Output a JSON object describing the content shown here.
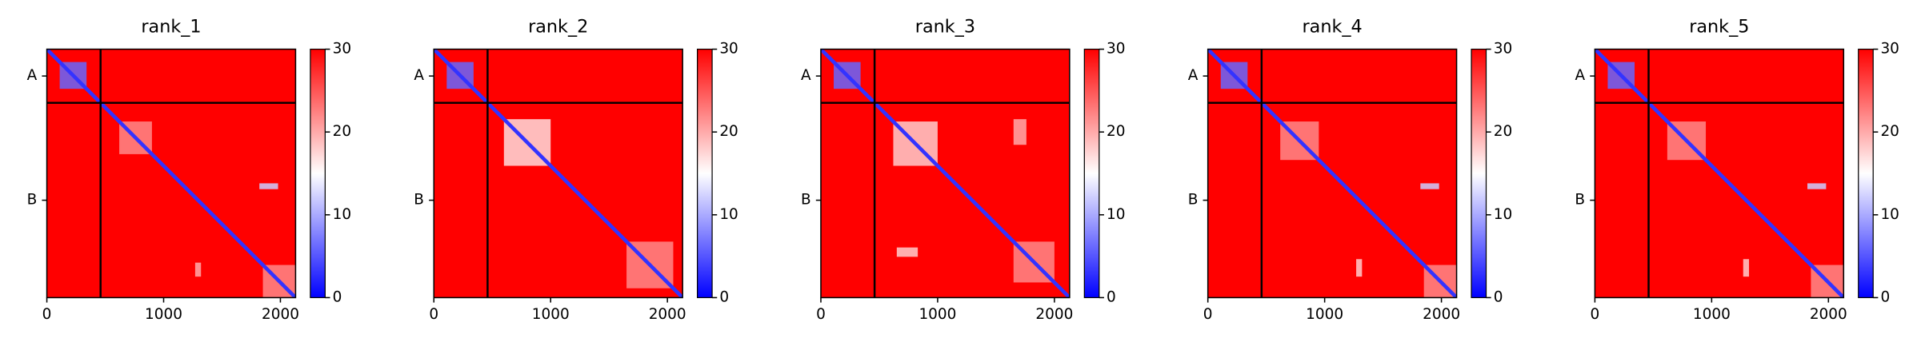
{
  "chart_data": [
    {
      "type": "heatmap",
      "title": "rank_1",
      "xlim": [
        0,
        2130
      ],
      "ylim": [
        2130,
        0
      ],
      "xticks": [
        0,
        1000,
        2000
      ],
      "yticks": [
        {
          "value": 230,
          "label": "A"
        },
        {
          "value": 1295,
          "label": "B"
        }
      ],
      "chain_boundary": 460,
      "clim": [
        0,
        30
      ],
      "cticks": [
        0,
        10,
        20,
        30
      ],
      "colors": [
        "#0000ff",
        "#ffffff",
        "#ff0000"
      ],
      "diagonal_value": 3,
      "regions": [
        {
          "x": [
            0,
            2130
          ],
          "y": [
            0,
            2130
          ],
          "value": 30
        },
        {
          "x": [
            110,
            340
          ],
          "y": [
            110,
            340
          ],
          "value": 6
        },
        {
          "x": [
            620,
            900
          ],
          "y": [
            620,
            900
          ],
          "value": 22
        },
        {
          "x": [
            1820,
            1980
          ],
          "y": [
            1150,
            1200
          ],
          "value": 12
        },
        {
          "x": [
            1270,
            1320
          ],
          "y": [
            1830,
            1950
          ],
          "value": 20
        },
        {
          "x": [
            1850,
            2130
          ],
          "y": [
            1850,
            2130
          ],
          "value": 22
        }
      ]
    },
    {
      "type": "heatmap",
      "title": "rank_2",
      "xlim": [
        0,
        2130
      ],
      "ylim": [
        2130,
        0
      ],
      "xticks": [
        0,
        1000,
        2000
      ],
      "yticks": [
        {
          "value": 230,
          "label": "A"
        },
        {
          "value": 1295,
          "label": "B"
        }
      ],
      "chain_boundary": 460,
      "clim": [
        0,
        30
      ],
      "cticks": [
        0,
        10,
        20,
        30
      ],
      "colors": [
        "#0000ff",
        "#ffffff",
        "#ff0000"
      ],
      "diagonal_value": 3,
      "regions": [
        {
          "x": [
            0,
            2130
          ],
          "y": [
            0,
            2130
          ],
          "value": 30
        },
        {
          "x": [
            110,
            340
          ],
          "y": [
            110,
            340
          ],
          "value": 6
        },
        {
          "x": [
            600,
            1000
          ],
          "y": [
            600,
            1000
          ],
          "value": 17
        },
        {
          "x": [
            1650,
            2050
          ],
          "y": [
            1650,
            2050
          ],
          "value": 22
        }
      ]
    },
    {
      "type": "heatmap",
      "title": "rank_3",
      "xlim": [
        0,
        2130
      ],
      "ylim": [
        2130,
        0
      ],
      "xticks": [
        0,
        1000,
        2000
      ],
      "yticks": [
        {
          "value": 230,
          "label": "A"
        },
        {
          "value": 1295,
          "label": "B"
        }
      ],
      "chain_boundary": 460,
      "clim": [
        0,
        30
      ],
      "cticks": [
        0,
        10,
        20,
        30
      ],
      "colors": [
        "#0000ff",
        "#ffffff",
        "#ff0000"
      ],
      "diagonal_value": 3,
      "regions": [
        {
          "x": [
            0,
            2130
          ],
          "y": [
            0,
            2130
          ],
          "value": 30
        },
        {
          "x": [
            110,
            340
          ],
          "y": [
            110,
            340
          ],
          "value": 6
        },
        {
          "x": [
            620,
            1000
          ],
          "y": [
            620,
            1000
          ],
          "value": 18
        },
        {
          "x": [
            1650,
            1760
          ],
          "y": [
            600,
            820
          ],
          "value": 20
        },
        {
          "x": [
            650,
            830
          ],
          "y": [
            1700,
            1780
          ],
          "value": 18
        },
        {
          "x": [
            1650,
            2000
          ],
          "y": [
            1650,
            2000
          ],
          "value": 22
        }
      ]
    },
    {
      "type": "heatmap",
      "title": "rank_4",
      "xlim": [
        0,
        2130
      ],
      "ylim": [
        2130,
        0
      ],
      "xticks": [
        0,
        1000,
        2000
      ],
      "yticks": [
        {
          "value": 230,
          "label": "A"
        },
        {
          "value": 1295,
          "label": "B"
        }
      ],
      "chain_boundary": 460,
      "clim": [
        0,
        30
      ],
      "cticks": [
        0,
        10,
        20,
        30
      ],
      "colors": [
        "#0000ff",
        "#ffffff",
        "#ff0000"
      ],
      "diagonal_value": 3,
      "regions": [
        {
          "x": [
            0,
            2130
          ],
          "y": [
            0,
            2130
          ],
          "value": 30
        },
        {
          "x": [
            110,
            340
          ],
          "y": [
            110,
            340
          ],
          "value": 6
        },
        {
          "x": [
            620,
            950
          ],
          "y": [
            620,
            950
          ],
          "value": 22
        },
        {
          "x": [
            1820,
            1980
          ],
          "y": [
            1150,
            1200
          ],
          "value": 12
        },
        {
          "x": [
            1270,
            1320
          ],
          "y": [
            1800,
            1950
          ],
          "value": 18
        },
        {
          "x": [
            1850,
            2130
          ],
          "y": [
            1850,
            2130
          ],
          "value": 22
        }
      ]
    },
    {
      "type": "heatmap",
      "title": "rank_5",
      "xlim": [
        0,
        2130
      ],
      "ylim": [
        2130,
        0
      ],
      "xticks": [
        0,
        1000,
        2000
      ],
      "yticks": [
        {
          "value": 230,
          "label": "A"
        },
        {
          "value": 1295,
          "label": "B"
        }
      ],
      "chain_boundary": 460,
      "clim": [
        0,
        30
      ],
      "cticks": [
        0,
        10,
        20,
        30
      ],
      "colors": [
        "#0000ff",
        "#ffffff",
        "#ff0000"
      ],
      "diagonal_value": 3,
      "regions": [
        {
          "x": [
            0,
            2130
          ],
          "y": [
            0,
            2130
          ],
          "value": 30
        },
        {
          "x": [
            110,
            340
          ],
          "y": [
            110,
            340
          ],
          "value": 6
        },
        {
          "x": [
            620,
            950
          ],
          "y": [
            620,
            950
          ],
          "value": 22
        },
        {
          "x": [
            1820,
            1980
          ],
          "y": [
            1150,
            1200
          ],
          "value": 12
        },
        {
          "x": [
            1270,
            1320
          ],
          "y": [
            1800,
            1950
          ],
          "value": 18
        },
        {
          "x": [
            1850,
            2130
          ],
          "y": [
            1850,
            2130
          ],
          "value": 22
        }
      ]
    }
  ]
}
